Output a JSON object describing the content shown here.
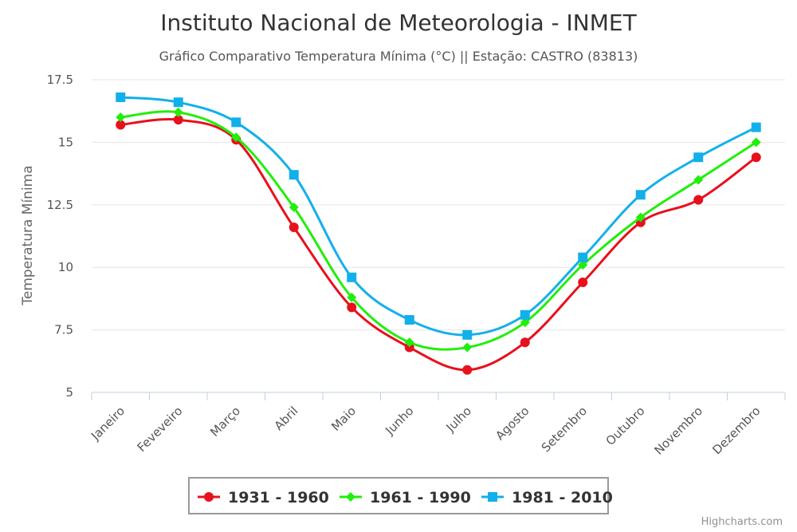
{
  "chart_data": {
    "type": "line",
    "title": "Instituto Nacional de Meteorologia - INMET",
    "subtitle": "Gráfico Comparativo Temperatura Mínima (°C) || Estação: CASTRO (83813)",
    "xlabel": "",
    "ylabel": "Temperatura Mínima",
    "ylim": [
      5,
      17.5
    ],
    "yticks": [
      "5",
      "7.5",
      "10",
      "12.5",
      "15",
      "17.5"
    ],
    "grid": true,
    "legend_position": "bottom-center",
    "categories": [
      "Janeiro",
      "Feveveiro",
      "Março",
      "Abril",
      "Maio",
      "Junho",
      "Julho",
      "Agosto",
      "Setembro",
      "Outubro",
      "Novembro",
      "Dezembro"
    ],
    "series": [
      {
        "name": "1931 - 1960",
        "color": "#e8101c",
        "marker": "circle",
        "values": [
          15.7,
          15.9,
          15.1,
          11.6,
          8.4,
          6.8,
          5.9,
          7.0,
          9.4,
          11.8,
          12.7,
          14.4
        ]
      },
      {
        "name": "1961 - 1990",
        "color": "#22ee0c",
        "marker": "diamond",
        "values": [
          16.0,
          16.2,
          15.2,
          12.4,
          8.8,
          7.0,
          6.8,
          7.8,
          10.1,
          12.0,
          13.5,
          15.0
        ]
      },
      {
        "name": "1981 - 2010",
        "color": "#12b0ea",
        "marker": "square",
        "values": [
          16.8,
          16.6,
          15.8,
          13.7,
          9.6,
          7.9,
          7.3,
          8.1,
          10.4,
          12.9,
          14.4,
          15.6
        ]
      }
    ]
  },
  "credits": "Highcharts.com"
}
